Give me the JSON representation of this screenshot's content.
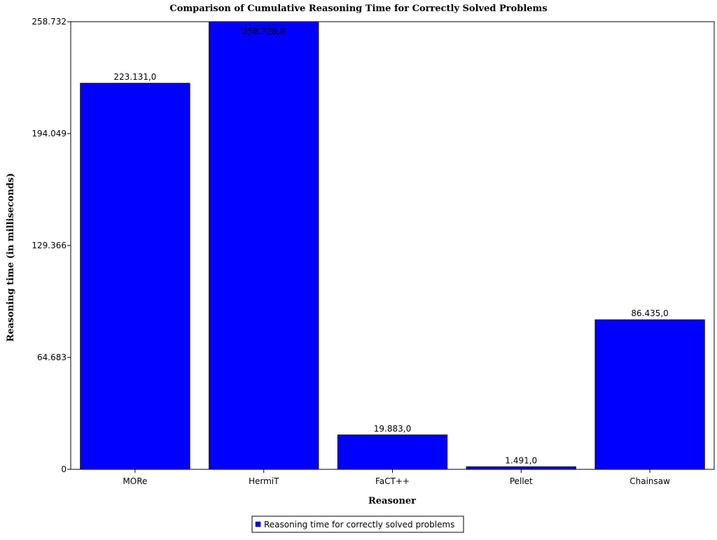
{
  "chart_data": {
    "type": "bar",
    "title": "Comparison of Cumulative Reasoning Time for Correctly Solved Problems",
    "xlabel": "Reasoner",
    "ylabel": "Reasoning time (in milliseconds)",
    "categories": [
      "MORe",
      "HermiT",
      "FaCT++",
      "Pellet",
      "Chainsaw"
    ],
    "series": [
      {
        "name": "Reasoning time for correctly solved problems",
        "values": [
          223131,
          258728,
          19883,
          1491,
          86435
        ],
        "labels": [
          "223.131,0",
          "258.728,0",
          "19.883,0",
          "1.491,0",
          "86.435,0"
        ]
      }
    ],
    "ylim": [
      0,
      258732
    ],
    "yticks": [
      0,
      64683,
      129366,
      194049,
      258732
    ],
    "ytick_labels": [
      "0",
      "64.683",
      "129.366",
      "194.049",
      "258.732"
    ],
    "grid": false,
    "legend_position": "bottom-center",
    "bar_color": "#0000ff",
    "bar_outline_color": "#000000"
  }
}
